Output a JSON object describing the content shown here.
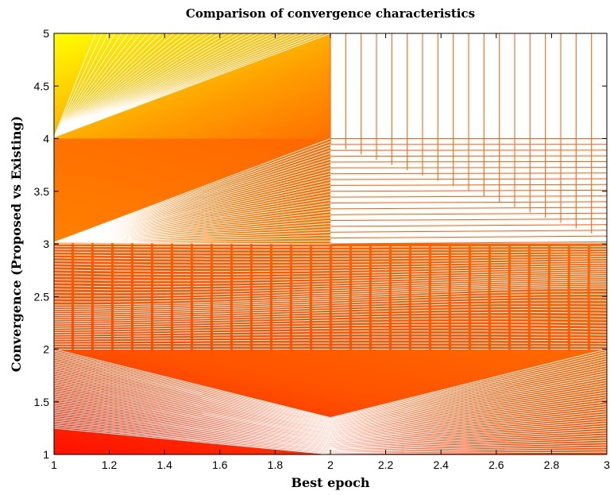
{
  "chart_data": {
    "type": "area",
    "title": "Comparison of convergence characteristics",
    "xlabel": "Best epoch",
    "ylabel": "Convergence (Proposed vs Existing)",
    "xlim": [
      1,
      3
    ],
    "ylim": [
      1,
      5
    ],
    "xticks": [
      "1",
      "1.2",
      "1.4",
      "1.6",
      "1.8",
      "2",
      "2.2",
      "2.4",
      "2.6",
      "2.8",
      "3"
    ],
    "yticks": [
      "1",
      "1.5",
      "2",
      "2.5",
      "3",
      "3.5",
      "4",
      "4.5",
      "5"
    ],
    "grid": false,
    "legend": "none",
    "colormap": [
      "#ff0000",
      "#ff7a00",
      "#ffff00"
    ],
    "boundary_levels": [
      2,
      3,
      4
    ],
    "regions": [
      {
        "y_range": [
          1,
          2
        ],
        "x_range": [
          1,
          3
        ],
        "shading": "gradient"
      },
      {
        "y_range": [
          2,
          3
        ],
        "x_range": [
          1,
          3
        ],
        "shading": "gradient"
      },
      {
        "y_range": [
          3,
          4
        ],
        "x_range": [
          1,
          2
        ],
        "shading": "gradient"
      },
      {
        "y_range": [
          4,
          5
        ],
        "x_range": [
          1,
          2
        ],
        "shading": "gradient"
      },
      {
        "y_range": [
          3,
          5
        ],
        "x_range": [
          2,
          3
        ],
        "shading": "white"
      }
    ]
  },
  "colors": {
    "background": "#ffffff",
    "axes": "#000000",
    "mesh_line": "#ff5a00",
    "stripe": "#ffffff"
  }
}
